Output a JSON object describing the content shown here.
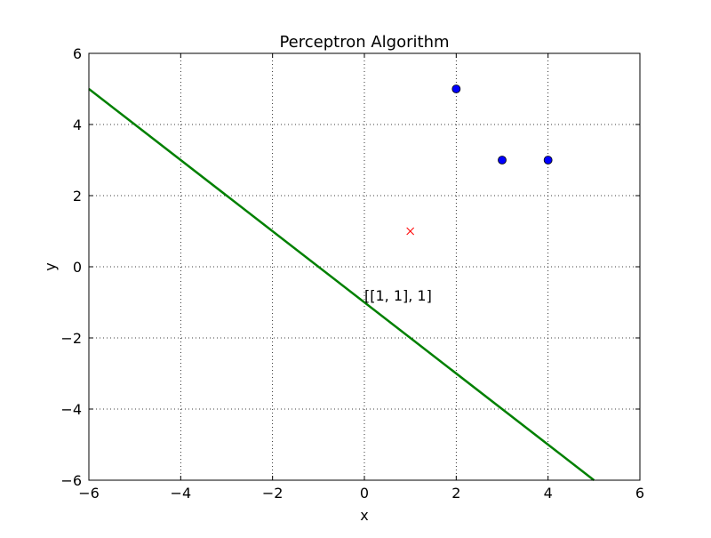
{
  "chart_data": {
    "type": "scatter",
    "title": "Perceptron Algorithm",
    "xlabel": "x",
    "ylabel": "y",
    "xlim": [
      -6,
      6
    ],
    "ylim": [
      -6,
      6
    ],
    "xticks": [
      -6,
      -4,
      -2,
      0,
      2,
      4,
      6
    ],
    "yticks": [
      -6,
      -4,
      -2,
      0,
      2,
      4,
      6
    ],
    "x_tick_labels": [
      "−6",
      "−4",
      "−2",
      "0",
      "2",
      "4",
      "6"
    ],
    "y_tick_labels": [
      "−6",
      "−4",
      "−2",
      "0",
      "2",
      "4",
      "6"
    ],
    "grid": true,
    "series": [
      {
        "marker": "circle",
        "color": "#0000ff",
        "points": [
          [
            2,
            5
          ],
          [
            3,
            3
          ],
          [
            4,
            3
          ]
        ]
      },
      {
        "marker": "x",
        "color": "#ff0000",
        "points": [
          [
            1,
            1
          ]
        ]
      }
    ],
    "decision_line": {
      "color": "#008000",
      "points": [
        [
          -6,
          5
        ],
        [
          5,
          -6
        ]
      ]
    },
    "annotation": {
      "text": "[[1, 1], 1]",
      "x": 0,
      "y": -1
    }
  }
}
